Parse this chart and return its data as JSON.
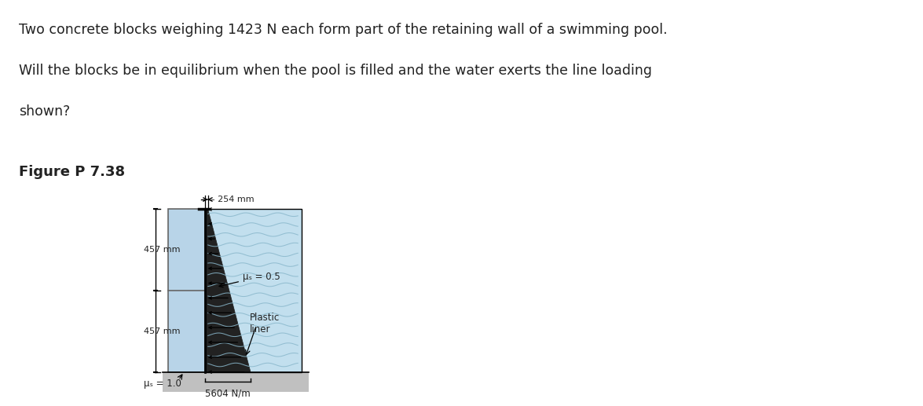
{
  "title_line1": "Two concrete blocks weighing 1423 N each form part of the retaining wall of a swimming pool.",
  "title_line2": "Will the blocks be in equilibrium when the pool is filled and the water exerts the line loading",
  "title_line3": "shown?",
  "figure_label": "Figure P 7.38",
  "dim_254": "– 254 mm",
  "dim_457_top": "457 mm",
  "dim_457_bot": "457 mm",
  "mu_s_top": "μₛ = 0.5",
  "mu_s_bot": "μₛ = 1.0",
  "load_label": "5604 N/m",
  "plastic_label1": "Plastic",
  "plastic_label2": "liner",
  "water_color": "#c2dfee",
  "block_color": "#b8d4e8",
  "wall_color": "#222222",
  "ground_color": "#c0c0c0",
  "ground_line_color": "#888888",
  "fig_bg": "#ffffff",
  "text_color": "#222222",
  "water_line_color": "#8ab8cc"
}
